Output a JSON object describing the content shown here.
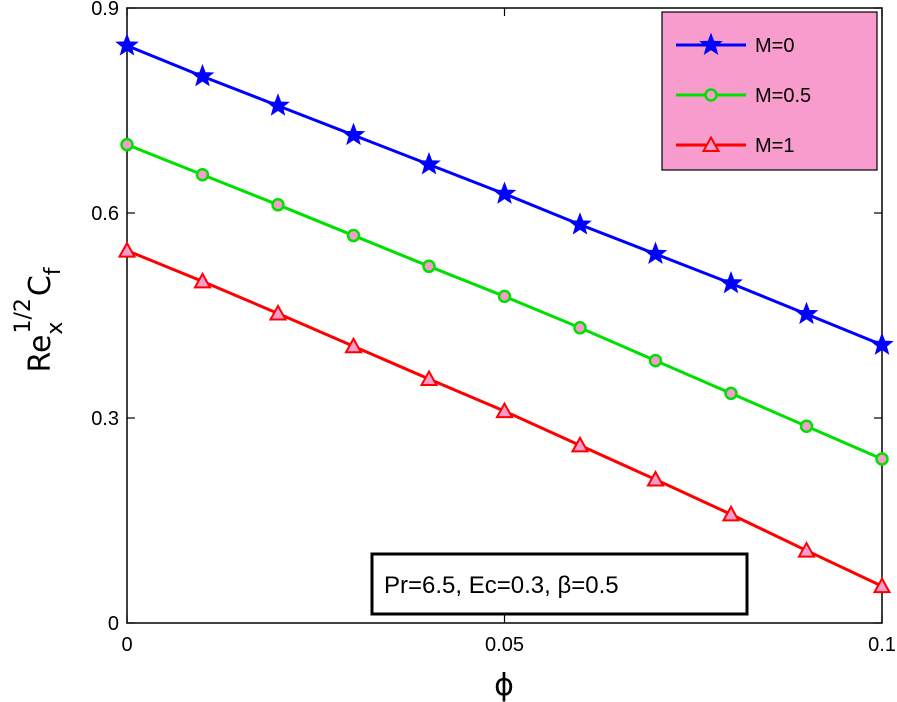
{
  "chart_data": {
    "type": "line",
    "xlabel": "ϕ",
    "ylabel": {
      "base": "Re",
      "sub": "x",
      "sup": "1/2",
      "main": "C",
      "main_sub": "f"
    },
    "xlim": [
      0,
      0.1
    ],
    "ylim": [
      0,
      0.9
    ],
    "xticks": [
      0,
      0.05,
      0.1
    ],
    "xtick_labels": [
      "0",
      "0.05",
      "0.1"
    ],
    "yticks": [
      0,
      0.3,
      0.6,
      0.9
    ],
    "ytick_labels": [
      "0",
      "0.3",
      "0.6",
      "0.9"
    ],
    "grid": false,
    "legend_position": "top-right",
    "legend_bg": "#f79ccc",
    "x": [
      0,
      0.01,
      0.02,
      0.03,
      0.04,
      0.05,
      0.06,
      0.07,
      0.08,
      0.09,
      0.1
    ],
    "series": [
      {
        "name": "M=0",
        "color": "#0000ff",
        "marker": "star",
        "marker_fill": "#0000ff",
        "values": [
          0.845,
          0.8,
          0.757,
          0.714,
          0.671,
          0.628,
          0.583,
          0.54,
          0.497,
          0.452,
          0.407
        ]
      },
      {
        "name": "M=0.5",
        "color": "#00e000",
        "marker": "circle",
        "marker_fill": "#f79ccc",
        "values": [
          0.7,
          0.656,
          0.612,
          0.567,
          0.522,
          0.478,
          0.432,
          0.384,
          0.336,
          0.288,
          0.24
        ]
      },
      {
        "name": "M=1",
        "color": "#ff0000",
        "marker": "triangle",
        "marker_fill": "#f79ccc",
        "values": [
          0.545,
          0.5,
          0.453,
          0.405,
          0.357,
          0.31,
          0.26,
          0.21,
          0.159,
          0.106,
          0.054
        ]
      }
    ],
    "annotation": "Pr=6.5, Ec=0.3,  β=0.5"
  }
}
